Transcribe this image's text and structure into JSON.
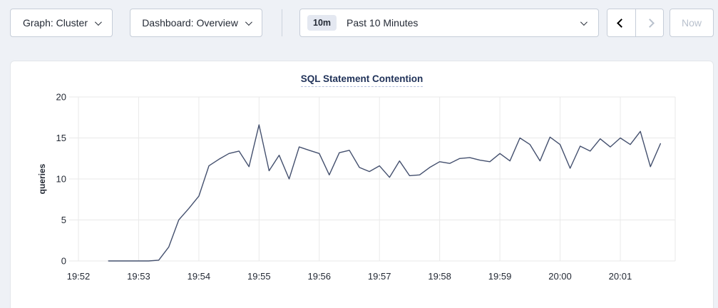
{
  "toolbar": {
    "graph_dropdown": {
      "label": "Graph: Cluster"
    },
    "dashboard_dropdown": {
      "label": "Dashboard: Overview"
    },
    "time_range": {
      "badge": "10m",
      "label": "Past 10 Minutes"
    },
    "now_label": "Now"
  },
  "colors": {
    "page_bg": "#eef1f6",
    "text": "#242a35",
    "title": "#1f3158",
    "muted": "#b9c1cd",
    "line": "#44506e",
    "grid": "#e9e9e9",
    "btn_border": "#c6cdd8",
    "card_border": "#e3e6ea",
    "badge_bg": "#e4e8f1",
    "divider": "#ccd3dd"
  },
  "chart_data": {
    "type": "line",
    "title": "SQL Statement Contention",
    "ylabel": "queries",
    "ylim": [
      0,
      20
    ],
    "yticks": [
      0,
      5,
      10,
      15,
      20
    ],
    "xticks": [
      "19:52",
      "19:53",
      "19:54",
      "19:55",
      "19:56",
      "19:57",
      "19:58",
      "19:59",
      "20:00",
      "20:01"
    ],
    "x_base_time": "19:52:00",
    "grid": true,
    "legend": false,
    "series": [
      {
        "name": "queries",
        "points": [
          [
            "19:52:30",
            0
          ],
          [
            "19:52:40",
            0
          ],
          [
            "19:52:50",
            0
          ],
          [
            "19:53:00",
            0
          ],
          [
            "19:53:10",
            0
          ],
          [
            "19:53:20",
            0.1
          ],
          [
            "19:53:30",
            1.7
          ],
          [
            "19:53:40",
            5.0
          ],
          [
            "19:53:50",
            6.4
          ],
          [
            "19:54:00",
            7.9
          ],
          [
            "19:54:10",
            11.6
          ],
          [
            "19:54:20",
            12.4
          ],
          [
            "19:54:30",
            13.1
          ],
          [
            "19:54:40",
            13.4
          ],
          [
            "19:54:50",
            11.5
          ],
          [
            "19:55:00",
            16.6
          ],
          [
            "19:55:10",
            11.0
          ],
          [
            "19:55:20",
            12.9
          ],
          [
            "19:55:30",
            10.0
          ],
          [
            "19:55:40",
            13.9
          ],
          [
            "19:55:50",
            13.5
          ],
          [
            "19:56:00",
            13.1
          ],
          [
            "19:56:10",
            10.5
          ],
          [
            "19:56:20",
            13.2
          ],
          [
            "19:56:30",
            13.5
          ],
          [
            "19:56:40",
            11.4
          ],
          [
            "19:56:50",
            10.9
          ],
          [
            "19:57:00",
            11.6
          ],
          [
            "19:57:10",
            10.2
          ],
          [
            "19:57:20",
            12.2
          ],
          [
            "19:57:30",
            10.4
          ],
          [
            "19:57:40",
            10.5
          ],
          [
            "19:57:50",
            11.4
          ],
          [
            "19:58:00",
            12.1
          ],
          [
            "19:58:10",
            11.9
          ],
          [
            "19:58:20",
            12.5
          ],
          [
            "19:58:30",
            12.6
          ],
          [
            "19:58:40",
            12.3
          ],
          [
            "19:58:50",
            12.1
          ],
          [
            "19:59:00",
            13.1
          ],
          [
            "19:59:10",
            12.2
          ],
          [
            "19:59:20",
            15.0
          ],
          [
            "19:59:30",
            14.2
          ],
          [
            "19:59:40",
            12.2
          ],
          [
            "19:59:50",
            15.1
          ],
          [
            "20:00:00",
            14.2
          ],
          [
            "20:00:10",
            11.3
          ],
          [
            "20:00:20",
            14.0
          ],
          [
            "20:00:30",
            13.4
          ],
          [
            "20:00:40",
            14.9
          ],
          [
            "20:00:50",
            13.9
          ],
          [
            "20:01:00",
            15.0
          ],
          [
            "20:01:10",
            14.2
          ],
          [
            "20:01:20",
            15.8
          ],
          [
            "20:01:30",
            11.5
          ],
          [
            "20:01:40",
            14.3
          ]
        ]
      }
    ]
  }
}
